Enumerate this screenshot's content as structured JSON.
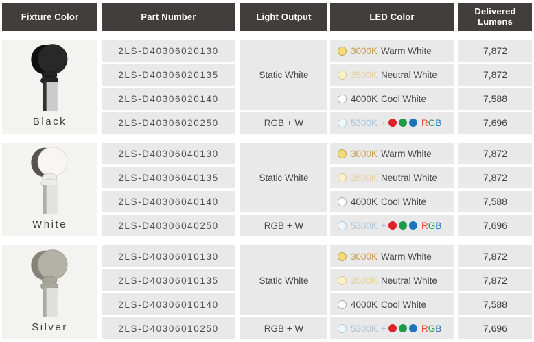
{
  "header": {
    "fixture_color": "Fixture Color",
    "part_number": "Part Number",
    "light_output": "Light Output",
    "led_color": "LED Color",
    "delivered_lumens": "Delivered Lumens"
  },
  "light_output": {
    "static_label": "Static White",
    "rgbw_label": "RGB + W"
  },
  "led_options": [
    {
      "cct": "3000K",
      "label": "Warm White",
      "cct_color": "#C49A4B",
      "swatch_fill": "#F4DC74",
      "swatch_border": "#C2A14F"
    },
    {
      "cct": "3500K",
      "label": "Neutral White",
      "cct_color": "#E6CE97",
      "swatch_fill": "#F9F0CC",
      "swatch_border": "#DCC68E"
    },
    {
      "cct": "4000K",
      "label": "Cool White",
      "cct_color": "#474747",
      "swatch_fill": "#FFFFFF",
      "swatch_border": "#A5ABB0"
    },
    {
      "cct": "5300K",
      "plus": "+",
      "cct_color": "#A9C3D8",
      "swatch_fill": "#F1F8FC",
      "swatch_border": "#ACCADE",
      "dots": [
        "#E02027",
        "#1E9A48",
        "#1C74BC"
      ],
      "letters": [
        {
          "ch": "R",
          "color": "#EE3E35"
        },
        {
          "ch": "G",
          "color": "#27A04C"
        },
        {
          "ch": "B",
          "color": "#1D76BD"
        }
      ]
    }
  ],
  "groups": [
    {
      "fixture_color": "Black",
      "fixture_style": {
        "disc": "#282828",
        "disc_stroke": "#1A1A1A",
        "rim": "#101010",
        "knuckle": "#232323",
        "knuckle_stroke": "#111111",
        "pole": "#CBCBCB",
        "pole_edge": "#333333"
      },
      "rows": [
        {
          "part_number": "2LS-D40306020130",
          "led": 0,
          "lumens": "7,872"
        },
        {
          "part_number": "2LS-D40306020135",
          "led": 1,
          "lumens": "7,872"
        },
        {
          "part_number": "2LS-D40306020140",
          "led": 2,
          "lumens": "7,588"
        },
        {
          "part_number": "2LS-D40306020250",
          "led": 3,
          "lumens": "7,696"
        }
      ]
    },
    {
      "fixture_color": "White",
      "fixture_style": {
        "disc": "#F7F6F3",
        "disc_stroke": "#D8D6D1",
        "rim": "#55544F",
        "knuckle": "#EDEBE7",
        "knuckle_stroke": "#CFCDC8",
        "pole": "#E4E2DE",
        "pole_edge": "#B0AEA9"
      },
      "rows": [
        {
          "part_number": "2LS-D40306040130",
          "led": 0,
          "lumens": "7,872"
        },
        {
          "part_number": "2LS-D40306040135",
          "led": 1,
          "lumens": "7,872"
        },
        {
          "part_number": "2LS-D40306040140",
          "led": 2,
          "lumens": "7,588"
        },
        {
          "part_number": "2LS-D40306040250",
          "led": 3,
          "lumens": "7,696"
        }
      ]
    },
    {
      "fixture_color": "Silver",
      "fixture_style": {
        "disc": "#B4B1A6",
        "disc_stroke": "#9B998E",
        "rim": "#86847A",
        "knuckle": "#A8A59A",
        "knuckle_stroke": "#8F8D82",
        "pole": "#E1DFDB",
        "pole_edge": "#ABAAA4"
      },
      "rows": [
        {
          "part_number": "2LS-D40306010130",
          "led": 0,
          "lumens": "7,872"
        },
        {
          "part_number": "2LS-D40306010135",
          "led": 1,
          "lumens": "7,872"
        },
        {
          "part_number": "2LS-D40306010140",
          "led": 2,
          "lumens": "7,588"
        },
        {
          "part_number": "2LS-D40306010250",
          "led": 3,
          "lumens": "7,696"
        }
      ]
    }
  ],
  "colors": {
    "header_bg": "#413E3D",
    "header_text": "#FFFFFF",
    "cell_bg": "#E9E9E9",
    "fixture_cell_bg": "#F3F3F2",
    "body_text": "#454545"
  }
}
